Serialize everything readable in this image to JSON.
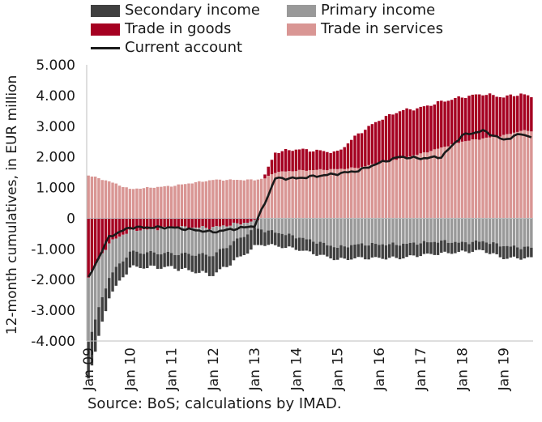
{
  "chart_data": {
    "type": "bar",
    "stacked": true,
    "title": "",
    "xlabel": "",
    "ylabel": "12-month cumulatives, in EUR million",
    "ylim": [
      -4000,
      5000
    ],
    "yticks": [
      -4000,
      -3000,
      -2000,
      -1000,
      0,
      1000,
      2000,
      3000,
      4000,
      5000
    ],
    "ytick_labels": [
      "-4.000",
      "-3.000",
      "-2.000",
      "-1.000",
      "0",
      "1.000",
      "2.000",
      "3.000",
      "4.000",
      "5.000"
    ],
    "xtick_labels": [
      "Jan 09",
      "Jan 10",
      "Jan 11",
      "Jan 12",
      "Jan 13",
      "Jan 14",
      "Jan 15",
      "Jan 16",
      "Jan 17",
      "Jan 18",
      "Jan 19"
    ],
    "period_start": "2009-01",
    "period_end": "2019-09",
    "frequency": "monthly",
    "grid": false,
    "legend_position": "top",
    "colors": {
      "secondary_income": "#404040",
      "primary_income": "#999999",
      "trade_in_goods": "#a50021",
      "trade_in_services": "#d99694",
      "current_account": "#1a1a1a"
    },
    "series_anchors": {
      "note_months": [
        0,
        6,
        12,
        24,
        36,
        48,
        51,
        54,
        60,
        72,
        78,
        84,
        90,
        96,
        102,
        108,
        114,
        120,
        125,
        128
      ],
      "trade_in_services": [
        1400,
        1200,
        950,
        1050,
        1250,
        1250,
        1300,
        1500,
        1550,
        1600,
        1650,
        1800,
        1950,
        2100,
        2300,
        2500,
        2600,
        2700,
        2850,
        2850
      ],
      "trade_in_goods": [
        -1900,
        -800,
        -400,
        -300,
        -300,
        -100,
        100,
        650,
        700,
        550,
        1100,
        1400,
        1550,
        1500,
        1500,
        1450,
        1450,
        1250,
        1200,
        1100
      ],
      "primary_income": [
        -2100,
        -1100,
        -700,
        -850,
        -900,
        -250,
        -400,
        -450,
        -600,
        -950,
        -850,
        -850,
        -850,
        -800,
        -750,
        -800,
        -750,
        -900,
        -950,
        -950
      ],
      "secondary_income": [
        -1200,
        -650,
        -500,
        -450,
        -650,
        -600,
        -450,
        -450,
        -400,
        -400,
        -450,
        -450,
        -450,
        -400,
        -400,
        -300,
        -300,
        -400,
        -350,
        -350
      ],
      "current_account": [
        -1950,
        -600,
        -300,
        -300,
        -450,
        -250,
        500,
        1300,
        1300,
        1450,
        1550,
        1800,
        2000,
        1950,
        2000,
        2700,
        2850,
        2550,
        2750,
        2650
      ]
    }
  },
  "legend": {
    "secondary_income": "Secondary income",
    "primary_income": "Primary income",
    "trade_in_goods": "Trade in goods",
    "trade_in_services": "Trade in services",
    "current_account": "Current account"
  },
  "source": "Source: BoS; calculations by IMAD."
}
